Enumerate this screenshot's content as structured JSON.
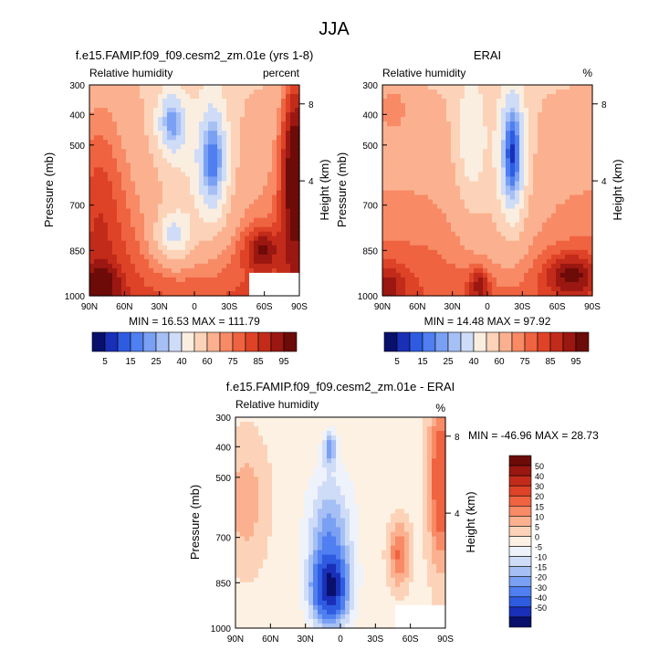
{
  "figure": {
    "title": "JJA"
  },
  "colors": {
    "abs_palette": [
      "#08106b",
      "#1a2fb8",
      "#2e5be0",
      "#4f7ff0",
      "#7aa0f3",
      "#a6c0f5",
      "#cfdcf7",
      "#faeee0",
      "#fcd3b8",
      "#fbb18f",
      "#f88a66",
      "#ef6340",
      "#de4327",
      "#c22b1a",
      "#9b1711",
      "#6c0b08"
    ],
    "abs_labels": [
      "5",
      "15",
      "25",
      "40",
      "60",
      "75",
      "85",
      "95"
    ],
    "diff_palette": [
      "#08106b",
      "#1a2fb8",
      "#2e5be0",
      "#4f7ff0",
      "#7aa0f3",
      "#a6c0f5",
      "#cfdcf7",
      "#eef2fb",
      "#fdf1e3",
      "#fcd3b8",
      "#fbb18f",
      "#f88a66",
      "#ef6340",
      "#de4327",
      "#c22b1a",
      "#9b1711",
      "#6c0b08"
    ],
    "diff_labels": [
      "50",
      "40",
      "30",
      "20",
      "15",
      "10",
      "5",
      "0",
      "-5",
      "-10",
      "-15",
      "-20",
      "-30",
      "-40",
      "-50"
    ],
    "mask": "#ffffff"
  },
  "chart_data": [
    {
      "type": "heatmap",
      "title": "f.e15.FAMIP.f09_f09.cesm2_zm.01e (yrs 1-8)",
      "left_label": "Relative humidity",
      "right_label": "percent",
      "ylabel": "Pressure (mb)",
      "y2label": "Height (km)",
      "x_ticks": [
        "90N",
        "60N",
        "30N",
        "0",
        "30S",
        "60S",
        "90S"
      ],
      "y_ticks": [
        "300",
        "400",
        "500",
        "700",
        "850",
        "1000"
      ],
      "y2_ticks": [
        "8",
        "4"
      ],
      "xlim": [
        90,
        -90
      ],
      "ylim": [
        1000,
        300
      ],
      "stats": "MIN = 16.53 MAX = 111.79",
      "min": 16.53,
      "max": 111.79
    },
    {
      "type": "heatmap",
      "title": "ERAI",
      "left_label": "Relative humidity",
      "right_label": "%",
      "ylabel": "Pressure (mb)",
      "y2label": "Height (km)",
      "x_ticks": [
        "90N",
        "60N",
        "30N",
        "0",
        "30S",
        "60S",
        "90S"
      ],
      "y_ticks": [
        "300",
        "400",
        "500",
        "700",
        "850",
        "1000"
      ],
      "y2_ticks": [
        "8",
        "4"
      ],
      "xlim": [
        90,
        -90
      ],
      "ylim": [
        1000,
        300
      ],
      "stats": "MIN = 14.48 MAX = 97.92",
      "min": 14.48,
      "max": 97.92
    },
    {
      "type": "heatmap",
      "title": "f.e15.FAMIP.f09_f09.cesm2_zm.01e - ERAI",
      "left_label": "Relative humidity",
      "right_label": "%",
      "ylabel": "Pressure (mb)",
      "y2label": "Height (km)",
      "x_ticks": [
        "90N",
        "60N",
        "30N",
        "0",
        "30S",
        "60S",
        "90S"
      ],
      "y_ticks": [
        "300",
        "400",
        "500",
        "700",
        "850",
        "1000"
      ],
      "y2_ticks": [
        "8",
        "4"
      ],
      "xlim": [
        90,
        -90
      ],
      "ylim": [
        1000,
        300
      ],
      "stats": "MIN = -46.96 MAX = 28.73",
      "min": -46.96,
      "max": 28.73
    }
  ]
}
